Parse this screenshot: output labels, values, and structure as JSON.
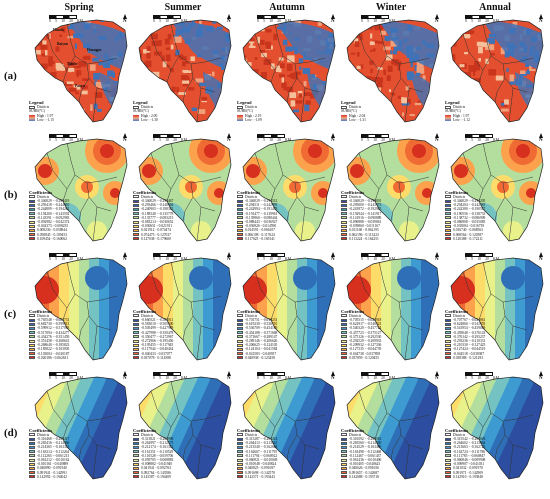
{
  "columns": [
    "Spring",
    "Summer",
    "Autumn",
    "Winter",
    "Annual"
  ],
  "rows": [
    "(a)",
    "(b)",
    "(c)",
    "(d)"
  ],
  "north_label": "N",
  "scale_units": "KM",
  "scale_ticks": [
    "0",
    "5",
    "10",
    "20"
  ],
  "row_a_legend": {
    "title": "Legend",
    "districts": "Districts",
    "subtitle": "SUHII(°C)",
    "items": [
      {
        "high": "High : 1.97",
        "low": "Low : -1.15"
      },
      {
        "high": "High : 2.00",
        "low": "Low : -1.30"
      },
      {
        "high": "High : 2.19",
        "low": "Low : -1.09"
      },
      {
        "high": "High : 2.04",
        "low": "Low : -1.31"
      },
      {
        "high": "High : 1.97",
        "low": "Low : -1.12"
      }
    ]
  },
  "place_names": [
    "Baiyun",
    "Huadu",
    "Huangpu",
    "Tianhe",
    "Panyu"
  ],
  "coef_legend": {
    "title": "Coefficients",
    "districts": "Districts",
    "b": [
      [
        "-0.346029 - -0.295419",
        "-0.295418 - -0.244810",
        "-0.244809 - -0.194201",
        "-0.194200 - -0.143592",
        "-0.143591 - -0.092983",
        "-0.092982 - -0.042374",
        "-0.042373 - 0.008235",
        "0.008236 - 0.058844",
        "0.058845 - 0.109453",
        "0.109454 - 0.160062"
      ],
      [
        "-0.346029 - -0.293467",
        "-0.293466 - -0.240904",
        "-0.240903 - -0.188341",
        "-0.188340 - -0.135778",
        "-0.135777 - -0.083215",
        "-0.083214 - -0.030652",
        "-0.030651 - 0.021911",
        "0.021912 - 0.074474",
        "0.074475 - 0.127037",
        "0.127038 - 0.179600"
      ],
      [
        "-0.346029 - -0.294512",
        "-0.294511 - -0.242995",
        "-0.242994 - -0.191478",
        "-0.191477 - -0.139961",
        "-0.139960 - -0.088444",
        "-0.088443 - -0.036927",
        "-0.036926 - 0.014590",
        "0.014591 - 0.066107",
        "0.066108 - 0.117624",
        "0.117625 - 0.169141"
      ],
      [
        "-0.346029 - -0.295001",
        "-0.295000 - -0.243973",
        "-0.243972 - -0.192945",
        "-0.192944 - -0.141917",
        "-0.141916 - -0.090889",
        "-0.090888 - -0.039861",
        "-0.039860 - 0.011167",
        "0.011168 - 0.062195",
        "0.062196 - 0.113223",
        "0.113224 - 0.164251"
      ],
      [
        "-0.346029 - -0.294205",
        "-0.294204 - -0.242381",
        "-0.242380 - -0.190557",
        "-0.190556 - -0.138733",
        "-0.138732 - -0.086909",
        "-0.086908 - -0.035085",
        "-0.035084 - 0.016739",
        "0.016740 - 0.068563",
        "0.068564 - 0.120387",
        "0.120388 - 0.172211"
      ]
    ],
    "c": [
      [
        "-0.765548 - -0.682731",
        "-0.682730 - -0.599913",
        "-0.599912 - -0.517095",
        "-0.517094 - -0.434277",
        "-0.434276 - -0.351459",
        "-0.351458 - -0.268641",
        "-0.268640 - -0.185823",
        "-0.185822 - -0.103005",
        "-0.103004 - -0.020187",
        "-0.020186 - 0.062631"
      ],
      [
        "-0.660521 - -0.583011",
        "-0.583010 - -0.505500",
        "-0.505499 - -0.427989",
        "-0.427988 - -0.350478",
        "-0.350477 - -0.272967",
        "-0.272966 - -0.195456",
        "-0.195455 - -0.117945",
        "-0.117944 - -0.040434",
        "-0.040433 - 0.037077",
        "0.037078 - 0.114588"
      ],
      [
        "-0.701751 - -0.619231",
        "-0.619230 - -0.536710",
        "-0.536709 - -0.454189",
        "-0.454188 - -0.371668",
        "-0.371667 - -0.289147",
        "-0.289146 - -0.206626",
        "-0.206625 - -0.124105",
        "-0.124104 - -0.041584",
        "-0.041583 - 0.040937",
        "0.040938 - 0.123458"
      ],
      [
        "-0.705515 - -0.622918",
        "-0.622917 - -0.540321",
        "-0.540320 - -0.457724",
        "-0.457723 - -0.375127",
        "-0.375126 - -0.292530",
        "-0.292529 - -0.209933",
        "-0.209932 - -0.127336",
        "-0.127335 - -0.044739",
        "-0.044738 - 0.037858",
        "0.037859 - 0.120455"
      ],
      [
        "-0.707767 - -0.624861",
        "-0.624860 - -0.541955",
        "-0.541954 - -0.459049",
        "-0.459048 - -0.376143",
        "-0.376142 - -0.293237",
        "-0.293236 - -0.210331",
        "-0.210330 - -0.127425",
        "-0.127424 - -0.044519",
        "-0.044518 - 0.038387",
        "0.038388 - 0.121293"
      ]
    ],
    "d": [
      [
        "-0.316468 - -0.265417",
        "-0.265416 - -0.214366",
        "-0.214365 - -0.163315",
        "-0.163314 - -0.112264",
        "-0.112263 - -0.061213",
        "-0.061212 - -0.010162",
        "-0.010161 - 0.040889",
        "0.040890 - 0.091940",
        "0.091941 - 0.142991",
        "0.142992 - 0.194042"
      ],
      [
        "-0.313821 - -0.262998",
        "-0.262997 - -0.212175",
        "-0.212174 - -0.161352",
        "-0.161351 - -0.110529",
        "-0.110528 - -0.059706",
        "-0.059705 - -0.008883",
        "-0.008882 - 0.041940",
        "0.041941 - 0.092763",
        "0.092764 - 0.143586",
        "0.143587 - 0.194409"
      ],
      [
        "-0.315287 - -0.264414",
        "-0.264413 - -0.213541",
        "-0.213540 - -0.162668",
        "-0.162667 - -0.111795",
        "-0.111794 - -0.060922",
        "-0.060921 - -0.010049",
        "-0.010048 - 0.040824",
        "0.040825 - 0.091697",
        "0.091698 - 0.142570",
        "0.142571 - 0.193443"
      ],
      [
        "-0.316592 - -0.265561",
        "-0.265560 - -0.214530",
        "-0.214529 - -0.163499",
        "-0.163498 - -0.112468",
        "-0.112467 - -0.061437",
        "-0.061436 - -0.010406",
        "-0.010405 - 0.040625",
        "0.040626 - 0.091656",
        "0.091657 - 0.142687",
        "0.142688 - 0.193718"
      ],
      [
        "-0.315542 - -0.264603",
        "-0.264602 - -0.213664",
        "-0.213663 - -0.162725",
        "-0.162724 - -0.111786",
        "-0.111785 - -0.060847",
        "-0.060846 - -0.009908",
        "-0.009907 - 0.041031",
        "0.041032 - 0.091970",
        "0.091971 - 0.142909",
        "0.142910 - 0.193848"
      ]
    ]
  },
  "colors": {
    "ramp": [
      "#2c4da0",
      "#2f6fb8",
      "#3d9bd1",
      "#74c3c2",
      "#b4de9e",
      "#e9f28a",
      "#fddc6a",
      "#fca24c",
      "#f06b34",
      "#d7301f"
    ],
    "urban_red": "#e4502f",
    "rural_blue": "#3f73b8",
    "boundary": "#333333"
  }
}
